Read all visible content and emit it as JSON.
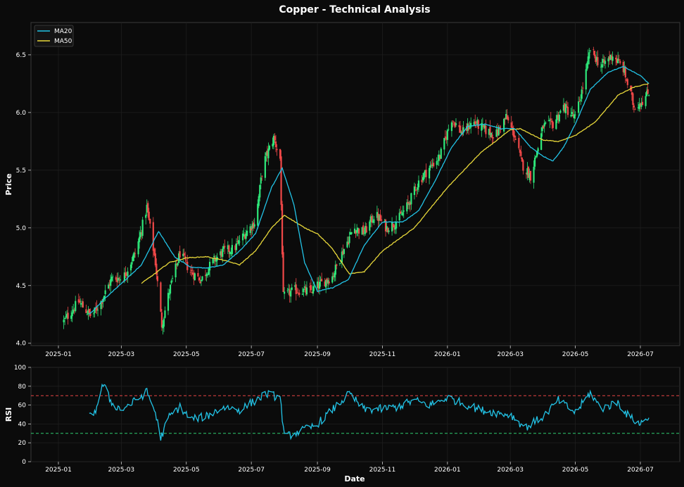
{
  "chart_data": {
    "type": "candlestick",
    "title": "Copper - Technical Analysis",
    "colors": {
      "up": "#2ee87a",
      "down": "#f04848",
      "ma20": "#22c3e6",
      "ma50": "#e8d83a",
      "rsi": "#22c3e6",
      "overbought": "#e64545",
      "oversold": "#2ecc71",
      "background": "#0b0b0b",
      "grid": "#1e1e1e"
    },
    "x_ticks": [
      "2025-01",
      "2025-03",
      "2025-05",
      "2025-07",
      "2025-09",
      "2025-11",
      "2026-01",
      "2026-03",
      "2026-05",
      "2026-07"
    ],
    "price_panel": {
      "ylabel": "Price",
      "ylim": [
        3.98,
        6.78
      ],
      "y_ticks": [
        "4.0",
        "4.5",
        "5.0",
        "5.5",
        "6.0",
        "6.5"
      ],
      "grid": true,
      "legend": {
        "placement": "top-left",
        "entries": [
          "MA20",
          "MA50"
        ]
      },
      "close_anchors": [
        [
          "2025-01-06",
          4.19
        ],
        [
          "2025-01-20",
          4.36
        ],
        [
          "2025-02-01",
          4.23
        ],
        [
          "2025-02-10",
          4.36
        ],
        [
          "2025-02-20",
          4.56
        ],
        [
          "2025-03-03",
          4.57
        ],
        [
          "2025-03-15",
          4.8
        ],
        [
          "2025-03-25",
          5.18
        ],
        [
          "2025-04-02",
          4.7
        ],
        [
          "2025-04-08",
          4.16
        ],
        [
          "2025-04-15",
          4.45
        ],
        [
          "2025-04-25",
          4.78
        ],
        [
          "2025-05-05",
          4.62
        ],
        [
          "2025-05-15",
          4.55
        ],
        [
          "2025-05-25",
          4.7
        ],
        [
          "2025-06-05",
          4.8
        ],
        [
          "2025-06-15",
          4.82
        ],
        [
          "2025-06-25",
          4.95
        ],
        [
          "2025-07-05",
          5.06
        ],
        [
          "2025-07-12",
          5.55
        ],
        [
          "2025-07-22",
          5.78
        ],
        [
          "2025-07-28",
          5.6
        ],
        [
          "2025-07-31",
          4.4
        ],
        [
          "2025-08-10",
          4.46
        ],
        [
          "2025-08-25",
          4.45
        ],
        [
          "2025-09-05",
          4.52
        ],
        [
          "2025-09-15",
          4.58
        ],
        [
          "2025-09-25",
          4.8
        ],
        [
          "2025-10-05",
          5.0
        ],
        [
          "2025-10-15",
          4.96
        ],
        [
          "2025-10-25",
          5.12
        ],
        [
          "2025-11-05",
          5.0
        ],
        [
          "2025-11-15",
          5.06
        ],
        [
          "2025-11-25",
          5.2
        ],
        [
          "2025-12-05",
          5.4
        ],
        [
          "2025-12-15",
          5.52
        ],
        [
          "2025-12-25",
          5.62
        ],
        [
          "2026-01-05",
          5.95
        ],
        [
          "2026-01-15",
          5.82
        ],
        [
          "2026-01-25",
          5.92
        ],
        [
          "2026-02-05",
          5.85
        ],
        [
          "2026-02-15",
          5.8
        ],
        [
          "2026-02-25",
          5.96
        ],
        [
          "2026-03-05",
          5.8
        ],
        [
          "2026-03-12",
          5.55
        ],
        [
          "2026-03-20",
          5.45
        ],
        [
          "2026-04-01",
          5.88
        ],
        [
          "2026-04-10",
          5.9
        ],
        [
          "2026-04-20",
          6.05
        ],
        [
          "2026-05-01",
          5.95
        ],
        [
          "2026-05-10",
          6.3
        ],
        [
          "2026-05-15",
          6.55
        ],
        [
          "2026-05-25",
          6.4
        ],
        [
          "2026-06-05",
          6.5
        ],
        [
          "2026-06-15",
          6.38
        ],
        [
          "2026-06-25",
          6.05
        ],
        [
          "2026-07-05",
          6.12
        ],
        [
          "2026-07-09",
          6.18
        ]
      ],
      "ma20_anchors": [
        [
          "2025-01-30",
          4.25
        ],
        [
          "2025-02-15",
          4.4
        ],
        [
          "2025-03-05",
          4.55
        ],
        [
          "2025-03-20",
          4.68
        ],
        [
          "2025-04-05",
          4.97
        ],
        [
          "2025-04-20",
          4.75
        ],
        [
          "2025-05-05",
          4.66
        ],
        [
          "2025-05-20",
          4.65
        ],
        [
          "2025-06-05",
          4.68
        ],
        [
          "2025-06-20",
          4.8
        ],
        [
          "2025-07-05",
          4.95
        ],
        [
          "2025-07-20",
          5.35
        ],
        [
          "2025-07-30",
          5.52
        ],
        [
          "2025-08-10",
          5.2
        ],
        [
          "2025-08-20",
          4.7
        ],
        [
          "2025-09-01",
          4.45
        ],
        [
          "2025-09-15",
          4.48
        ],
        [
          "2025-09-30",
          4.55
        ],
        [
          "2025-10-15",
          4.85
        ],
        [
          "2025-11-01",
          5.05
        ],
        [
          "2025-11-20",
          5.05
        ],
        [
          "2025-12-05",
          5.15
        ],
        [
          "2025-12-20",
          5.4
        ],
        [
          "2026-01-05",
          5.7
        ],
        [
          "2026-01-20",
          5.88
        ],
        [
          "2026-02-05",
          5.9
        ],
        [
          "2026-02-20",
          5.86
        ],
        [
          "2026-03-05",
          5.86
        ],
        [
          "2026-03-20",
          5.7
        ],
        [
          "2026-04-01",
          5.62
        ],
        [
          "2026-04-10",
          5.58
        ],
        [
          "2026-04-20",
          5.7
        ],
        [
          "2026-05-01",
          5.9
        ],
        [
          "2026-05-15",
          6.2
        ],
        [
          "2026-06-01",
          6.35
        ],
        [
          "2026-06-15",
          6.4
        ],
        [
          "2026-07-01",
          6.32
        ],
        [
          "2026-07-09",
          6.25
        ]
      ],
      "ma50_anchors": [
        [
          "2025-03-20",
          4.52
        ],
        [
          "2025-04-01",
          4.6
        ],
        [
          "2025-04-15",
          4.7
        ],
        [
          "2025-05-01",
          4.74
        ],
        [
          "2025-05-20",
          4.75
        ],
        [
          "2025-06-05",
          4.72
        ],
        [
          "2025-06-20",
          4.68
        ],
        [
          "2025-07-05",
          4.8
        ],
        [
          "2025-07-20",
          5.0
        ],
        [
          "2025-08-01",
          5.11
        ],
        [
          "2025-08-20",
          5.0
        ],
        [
          "2025-09-01",
          4.95
        ],
        [
          "2025-09-15",
          4.82
        ],
        [
          "2025-10-01",
          4.6
        ],
        [
          "2025-10-15",
          4.62
        ],
        [
          "2025-11-01",
          4.8
        ],
        [
          "2025-12-01",
          5.0
        ],
        [
          "2026-01-01",
          5.35
        ],
        [
          "2026-02-01",
          5.65
        ],
        [
          "2026-03-01",
          5.85
        ],
        [
          "2026-03-10",
          5.86
        ],
        [
          "2026-04-01",
          5.76
        ],
        [
          "2026-04-15",
          5.75
        ],
        [
          "2026-05-01",
          5.8
        ],
        [
          "2026-05-20",
          5.92
        ],
        [
          "2026-06-10",
          6.15
        ],
        [
          "2026-06-25",
          6.22
        ],
        [
          "2026-07-09",
          6.25
        ]
      ]
    },
    "rsi_panel": {
      "ylabel": "RSI",
      "xlabel": "Date",
      "ylim": [
        0,
        100
      ],
      "y_ticks": [
        "0",
        "20",
        "40",
        "60",
        "80",
        "100"
      ],
      "overbought": 70,
      "oversold": 30,
      "anchors": [
        [
          "2025-01-30",
          47
        ],
        [
          "2025-02-05",
          55
        ],
        [
          "2025-02-12",
          82
        ],
        [
          "2025-02-20",
          62
        ],
        [
          "2025-03-01",
          55
        ],
        [
          "2025-03-15",
          65
        ],
        [
          "2025-03-25",
          74
        ],
        [
          "2025-04-02",
          52
        ],
        [
          "2025-04-07",
          25
        ],
        [
          "2025-04-15",
          48
        ],
        [
          "2025-04-25",
          58
        ],
        [
          "2025-05-05",
          45
        ],
        [
          "2025-05-20",
          48
        ],
        [
          "2025-06-05",
          58
        ],
        [
          "2025-06-20",
          55
        ],
        [
          "2025-07-05",
          65
        ],
        [
          "2025-07-15",
          72
        ],
        [
          "2025-07-28",
          68
        ],
        [
          "2025-08-01",
          26
        ],
        [
          "2025-08-15",
          32
        ],
        [
          "2025-08-30",
          38
        ],
        [
          "2025-09-15",
          55
        ],
        [
          "2025-10-01",
          72
        ],
        [
          "2025-10-15",
          55
        ],
        [
          "2025-11-01",
          56
        ],
        [
          "2025-11-15",
          58
        ],
        [
          "2025-12-01",
          65
        ],
        [
          "2025-12-15",
          60
        ],
        [
          "2026-01-01",
          68
        ],
        [
          "2026-01-15",
          62
        ],
        [
          "2026-02-01",
          55
        ],
        [
          "2026-02-15",
          52
        ],
        [
          "2026-03-01",
          50
        ],
        [
          "2026-03-15",
          36
        ],
        [
          "2026-04-01",
          48
        ],
        [
          "2026-04-15",
          65
        ],
        [
          "2026-05-01",
          52
        ],
        [
          "2026-05-15",
          73
        ],
        [
          "2026-05-25",
          56
        ],
        [
          "2026-06-10",
          63
        ],
        [
          "2026-06-20",
          48
        ],
        [
          "2026-07-01",
          40
        ],
        [
          "2026-07-09",
          48
        ]
      ]
    }
  }
}
